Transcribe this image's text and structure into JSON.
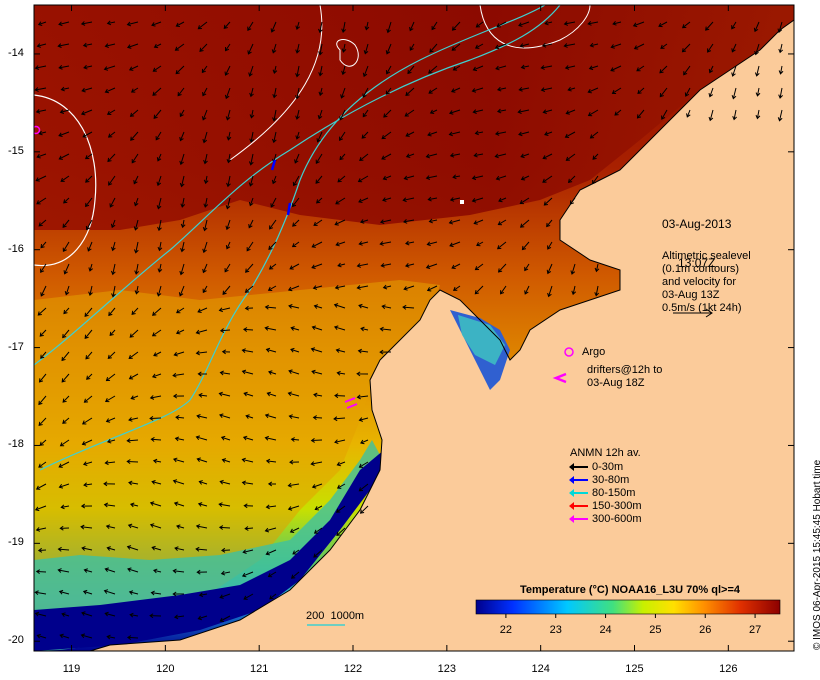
{
  "map": {
    "lon_ticks": [
      "119",
      "120",
      "121",
      "122",
      "123",
      "124",
      "125",
      "126"
    ],
    "lat_ticks": [
      "-14",
      "-15",
      "-16",
      "-17",
      "-18",
      "-19",
      "-20"
    ],
    "extent": {
      "lon": [
        118.6,
        126.7
      ],
      "lat": [
        -20.1,
        -13.5
      ]
    }
  },
  "annotations": {
    "datetime_line1": "03-Aug-2013",
    "datetime_line2": "13:07Z",
    "altimetry": "Altimetric sealevel\n(0.1m contours)\nand velocity for\n03-Aug 13Z\n0.5m/s (1kt 24h)",
    "argo_label": "Argo",
    "drifters_label": "drifters@12h to\n03-Aug 18Z",
    "isobath_label": "200  1000m"
  },
  "legend": {
    "title": "ANMN 12h av.",
    "items": [
      {
        "label": "0-30m",
        "color": "#000000"
      },
      {
        "label": "30-80m",
        "color": "#0000ff"
      },
      {
        "label": "80-150m",
        "color": "#00d8d8"
      },
      {
        "label": "150-300m",
        "color": "#ff0000"
      },
      {
        "label": "300-600m",
        "color": "#ff00ff"
      }
    ]
  },
  "colorbar": {
    "title": "Temperature (°C) NOAA16_L3U 70% ql>=4",
    "ticks": [
      "22",
      "23",
      "24",
      "25",
      "26",
      "27"
    ],
    "range": [
      21.4,
      27.5
    ]
  },
  "credit": "© IMOS 06-Apr-2015 15:45:45 Hobart time",
  "colors": {
    "land": "#fbcb9a",
    "sst_warm": "#8c0a00",
    "sst_cool": "#00008c",
    "contour": "#ffffff",
    "isobath": "#3fd0d0",
    "argo": "#ff00ff"
  }
}
